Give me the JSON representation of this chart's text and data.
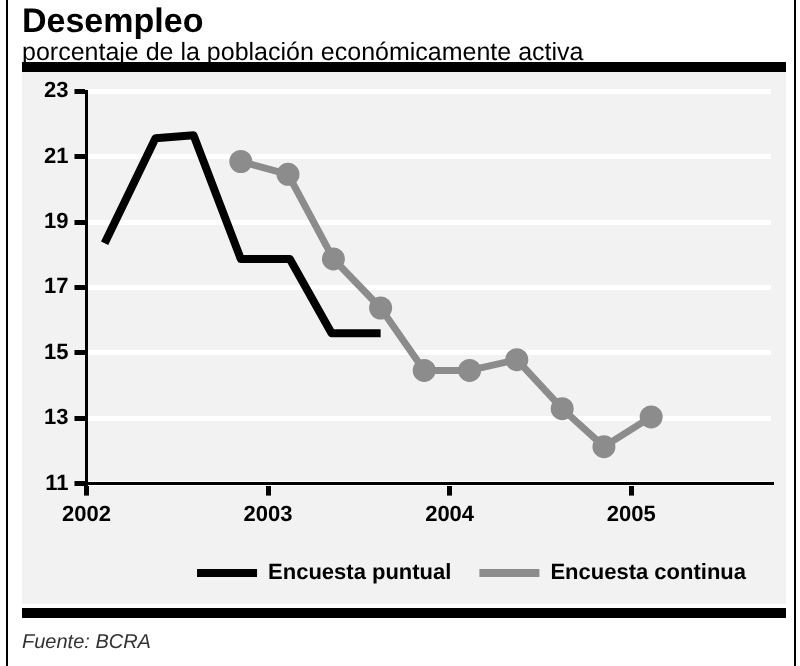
{
  "chart_data": {
    "type": "line",
    "title": "Desempleo",
    "subtitle": "porcentaje de la población económicamente activa",
    "annotations": [
      "Fuente: BCRA"
    ],
    "series": [
      {
        "name": "Encuesta puntual",
        "color": "#000000",
        "marker": "none",
        "x": [
          2002.1,
          2002.38,
          2002.59,
          2002.85,
          2003.12,
          2003.35,
          2003.62
        ],
        "values": [
          18.35,
          21.56,
          21.65,
          17.87,
          17.87,
          15.6,
          15.6
        ]
      },
      {
        "name": "Encuesta continua",
        "color": "#8c8c8c",
        "marker": "circle",
        "x": [
          2002.85,
          2003.11,
          2003.36,
          2003.62,
          2003.86,
          2004.11,
          2004.37,
          2004.62,
          2004.85,
          2005.11
        ],
        "values": [
          20.85,
          20.46,
          17.87,
          16.37,
          14.46,
          14.46,
          14.79,
          13.29,
          12.13,
          13.04
        ]
      }
    ],
    "xlim": [
      2002,
      2005.77
    ],
    "xticks": [
      2002,
      2003,
      2004,
      2005
    ],
    "ylim": [
      11,
      23
    ],
    "yticks": [
      11,
      13,
      15,
      17,
      19,
      21,
      23
    ],
    "grid": "y",
    "legend": "bottom",
    "line_style": "solid"
  }
}
